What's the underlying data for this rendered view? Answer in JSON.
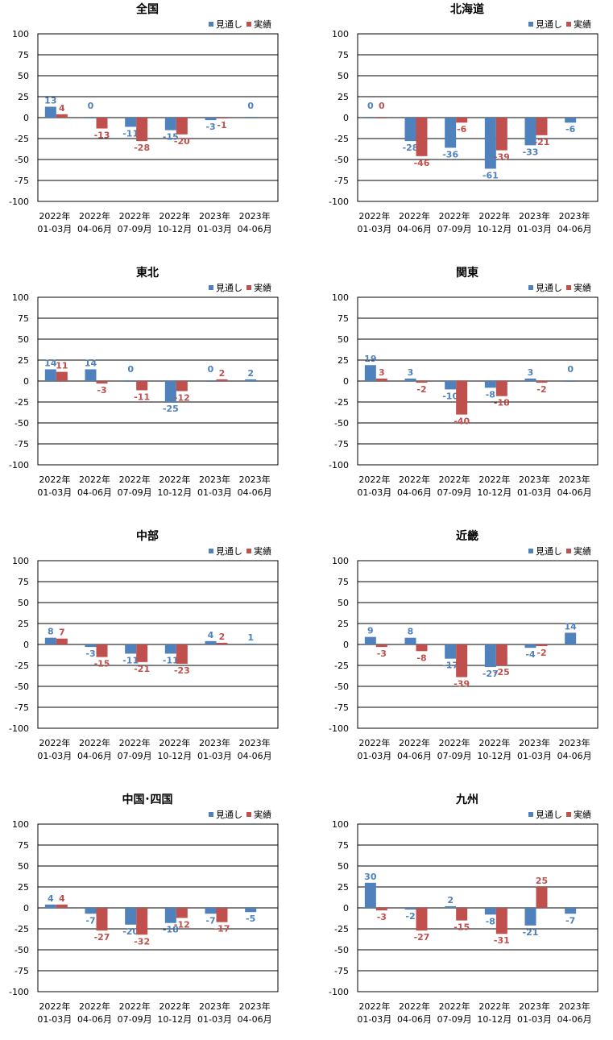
{
  "legend": {
    "series1": "見通し",
    "series2": "実績"
  },
  "colors": {
    "series1": "#4f81bd",
    "series2": "#c0504d"
  },
  "chart_data": [
    {
      "type": "bar",
      "title": "全国",
      "categories": [
        [
          "2022年",
          "01-03月"
        ],
        [
          "2022年",
          "04-06月"
        ],
        [
          "2022年",
          "07-09月"
        ],
        [
          "2022年",
          "10-12月"
        ],
        [
          "2023年",
          "01-03月"
        ],
        [
          "2023年",
          "04-06月"
        ]
      ],
      "series": [
        {
          "name": "見通し",
          "values": [
            13,
            0,
            -11,
            -15,
            -3,
            0
          ]
        },
        {
          "name": "実績",
          "values": [
            4,
            -13,
            -28,
            -20,
            -1,
            null
          ]
        }
      ],
      "ylim": [
        -100,
        100
      ],
      "yticks": [
        100,
        75,
        50,
        25,
        0,
        -25,
        -50,
        -75,
        -100
      ],
      "grid": true,
      "legend_position": "top-right"
    },
    {
      "type": "bar",
      "title": "北海道",
      "categories": [
        [
          "2022年",
          "01-03月"
        ],
        [
          "2022年",
          "04-06月"
        ],
        [
          "2022年",
          "07-09月"
        ],
        [
          "2022年",
          "10-12月"
        ],
        [
          "2023年",
          "01-03月"
        ],
        [
          "2023年",
          "04-06月"
        ]
      ],
      "series": [
        {
          "name": "見通し",
          "values": [
            0,
            -28,
            -36,
            -61,
            -33,
            -6
          ]
        },
        {
          "name": "実績",
          "values": [
            0,
            -46,
            -6,
            -39,
            -21,
            null
          ]
        }
      ],
      "ylim": [
        -100,
        100
      ],
      "yticks": [
        100,
        75,
        50,
        25,
        0,
        -25,
        -50,
        -75,
        -100
      ],
      "grid": true,
      "legend_position": "top-right"
    },
    {
      "type": "bar",
      "title": "東北",
      "categories": [
        [
          "2022年",
          "01-03月"
        ],
        [
          "2022年",
          "04-06月"
        ],
        [
          "2022年",
          "07-09月"
        ],
        [
          "2022年",
          "10-12月"
        ],
        [
          "2023年",
          "01-03月"
        ],
        [
          "2023年",
          "04-06月"
        ]
      ],
      "series": [
        {
          "name": "見通し",
          "values": [
            14,
            14,
            0,
            -25,
            0,
            2
          ]
        },
        {
          "name": "実績",
          "values": [
            11,
            -3,
            -11,
            -12,
            2,
            null
          ]
        }
      ],
      "ylim": [
        -100,
        100
      ],
      "yticks": [
        100,
        75,
        50,
        25,
        0,
        -25,
        -50,
        -75,
        -100
      ],
      "grid": true,
      "legend_position": "top-right"
    },
    {
      "type": "bar",
      "title": "関東",
      "categories": [
        [
          "2022年",
          "01-03月"
        ],
        [
          "2022年",
          "04-06月"
        ],
        [
          "2022年",
          "07-09月"
        ],
        [
          "2022年",
          "10-12月"
        ],
        [
          "2023年",
          "01-03月"
        ],
        [
          "2023年",
          "04-06月"
        ]
      ],
      "series": [
        {
          "name": "見通し",
          "values": [
            19,
            3,
            -10,
            -8,
            3,
            0
          ]
        },
        {
          "name": "実績",
          "values": [
            3,
            -2,
            -40,
            -18,
            -2,
            null
          ]
        }
      ],
      "ylim": [
        -100,
        100
      ],
      "yticks": [
        100,
        75,
        50,
        25,
        0,
        -25,
        -50,
        -75,
        -100
      ],
      "grid": true,
      "legend_position": "top-right"
    },
    {
      "type": "bar",
      "title": "中部",
      "categories": [
        [
          "2022年",
          "01-03月"
        ],
        [
          "2022年",
          "04-06月"
        ],
        [
          "2022年",
          "07-09月"
        ],
        [
          "2022年",
          "10-12月"
        ],
        [
          "2023年",
          "01-03月"
        ],
        [
          "2023年",
          "04-06月"
        ]
      ],
      "series": [
        {
          "name": "見通し",
          "values": [
            8,
            -3,
            -11,
            -11,
            4,
            1
          ]
        },
        {
          "name": "実績",
          "values": [
            7,
            -15,
            -21,
            -23,
            2,
            null
          ]
        }
      ],
      "ylim": [
        -100,
        100
      ],
      "yticks": [
        100,
        75,
        50,
        25,
        0,
        -25,
        -50,
        -75,
        -100
      ],
      "grid": true,
      "legend_position": "top-right"
    },
    {
      "type": "bar",
      "title": "近畿",
      "categories": [
        [
          "2022年",
          "01-03月"
        ],
        [
          "2022年",
          "04-06月"
        ],
        [
          "2022年",
          "07-09月"
        ],
        [
          "2022年",
          "10-12月"
        ],
        [
          "2023年",
          "01-03月"
        ],
        [
          "2023年",
          "04-06月"
        ]
      ],
      "series": [
        {
          "name": "見通し",
          "values": [
            9,
            8,
            -17,
            -27,
            -4,
            14
          ]
        },
        {
          "name": "実績",
          "values": [
            -3,
            -8,
            -39,
            -25,
            -2,
            null
          ]
        }
      ],
      "ylim": [
        -100,
        100
      ],
      "yticks": [
        100,
        75,
        50,
        25,
        0,
        -25,
        -50,
        -75,
        -100
      ],
      "grid": true,
      "legend_position": "top-right"
    },
    {
      "type": "bar",
      "title": "中国･四国",
      "categories": [
        [
          "2022年",
          "01-03月"
        ],
        [
          "2022年",
          "04-06月"
        ],
        [
          "2022年",
          "07-09月"
        ],
        [
          "2022年",
          "10-12月"
        ],
        [
          "2023年",
          "01-03月"
        ],
        [
          "2023年",
          "04-06月"
        ]
      ],
      "series": [
        {
          "name": "見通し",
          "values": [
            4,
            -7,
            -20,
            -18,
            -7,
            -5
          ]
        },
        {
          "name": "実績",
          "values": [
            4,
            -27,
            -32,
            -12,
            -17,
            null
          ]
        }
      ],
      "ylim": [
        -100,
        100
      ],
      "yticks": [
        100,
        75,
        50,
        25,
        0,
        -25,
        -50,
        -75,
        -100
      ],
      "grid": true,
      "legend_position": "top-right"
    },
    {
      "type": "bar",
      "title": "九州",
      "categories": [
        [
          "2022年",
          "01-03月"
        ],
        [
          "2022年",
          "04-06月"
        ],
        [
          "2022年",
          "07-09月"
        ],
        [
          "2022年",
          "10-12月"
        ],
        [
          "2023年",
          "01-03月"
        ],
        [
          "2023年",
          "04-06月"
        ]
      ],
      "series": [
        {
          "name": "見通し",
          "values": [
            30,
            -2,
            2,
            -8,
            -21,
            -7
          ]
        },
        {
          "name": "実績",
          "values": [
            -3,
            -27,
            -15,
            -31,
            25,
            null
          ]
        }
      ],
      "ylim": [
        -100,
        100
      ],
      "yticks": [
        100,
        75,
        50,
        25,
        0,
        -25,
        -50,
        -75,
        -100
      ],
      "grid": true,
      "legend_position": "top-right"
    }
  ]
}
